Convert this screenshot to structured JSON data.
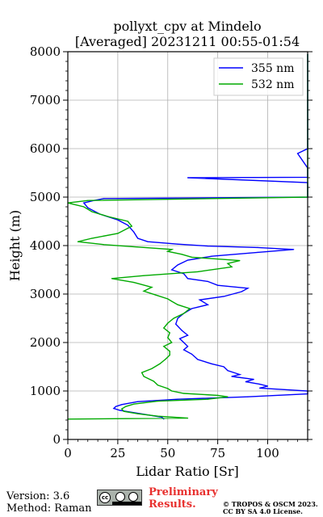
{
  "chart_data": {
    "type": "line",
    "title": "pollyxt_cpv at Mindelo",
    "subtitle": "[Averaged] 20231211 00:55-01:54",
    "xlabel": "Lidar Ratio [Sr]",
    "ylabel": "Height (m)",
    "xlim": [
      0,
      120
    ],
    "ylim": [
      0,
      8000
    ],
    "xticks": [
      0,
      25,
      50,
      75,
      100
    ],
    "yticks": [
      0,
      1000,
      2000,
      3000,
      4000,
      5000,
      6000,
      7000,
      8000
    ],
    "grid": true,
    "legend_position": "top-right",
    "series": [
      {
        "name": "355 nm",
        "color": "#0000ff",
        "points": [
          [
            48,
            420
          ],
          [
            47,
            460
          ],
          [
            35,
            540
          ],
          [
            26,
            600
          ],
          [
            23,
            640
          ],
          [
            24,
            680
          ],
          [
            27,
            720
          ],
          [
            35,
            780
          ],
          [
            55,
            830
          ],
          [
            90,
            880
          ],
          [
            120,
            940
          ],
          [
            120,
            1000
          ],
          [
            96,
            1060
          ],
          [
            100,
            1100
          ],
          [
            96,
            1140
          ],
          [
            89,
            1190
          ],
          [
            93,
            1240
          ],
          [
            82,
            1300
          ],
          [
            86,
            1340
          ],
          [
            80,
            1420
          ],
          [
            78,
            1500
          ],
          [
            72,
            1560
          ],
          [
            65,
            1650
          ],
          [
            62,
            1760
          ],
          [
            58,
            1850
          ],
          [
            60,
            1920
          ],
          [
            58,
            2000
          ],
          [
            56,
            2080
          ],
          [
            60,
            2150
          ],
          [
            57,
            2250
          ],
          [
            54,
            2380
          ],
          [
            55,
            2500
          ],
          [
            58,
            2600
          ],
          [
            62,
            2700
          ],
          [
            70,
            2780
          ],
          [
            66,
            2880
          ],
          [
            78,
            2950
          ],
          [
            87,
            3050
          ],
          [
            90,
            3120
          ],
          [
            75,
            3180
          ],
          [
            70,
            3260
          ],
          [
            60,
            3320
          ],
          [
            58,
            3420
          ],
          [
            52,
            3500
          ],
          [
            55,
            3600
          ],
          [
            60,
            3700
          ],
          [
            72,
            3780
          ],
          [
            95,
            3860
          ],
          [
            113,
            3920
          ],
          [
            95,
            3960
          ],
          [
            70,
            3990
          ],
          [
            55,
            4030
          ],
          [
            40,
            4080
          ],
          [
            35,
            4150
          ],
          [
            33,
            4280
          ],
          [
            30,
            4420
          ],
          [
            25,
            4530
          ],
          [
            16,
            4650
          ],
          [
            10,
            4780
          ],
          [
            8,
            4880
          ],
          [
            13,
            4930
          ],
          [
            18,
            4970
          ],
          [
            120,
            5000
          ],
          [
            120,
            5100
          ],
          [
            120,
            5300
          ],
          [
            60,
            5400
          ],
          [
            120,
            5410
          ],
          [
            120,
            5500
          ],
          [
            120,
            5550
          ],
          [
            120,
            5600
          ],
          [
            115,
            5900
          ],
          [
            120,
            6000
          ],
          [
            120,
            6100
          ],
          [
            120,
            6200
          ],
          [
            120,
            6300
          ],
          [
            120,
            6380
          ],
          [
            120,
            6850
          ],
          [
            120,
            7000
          ],
          [
            120,
            7050
          ],
          [
            120,
            7100
          ],
          [
            120,
            7350
          ],
          [
            120,
            7500
          ],
          [
            120,
            7700
          ],
          [
            120,
            7950
          ]
        ]
      },
      {
        "name": "532 nm",
        "color": "#00aa00",
        "points": [
          [
            0,
            420
          ],
          [
            60,
            440
          ],
          [
            45,
            480
          ],
          [
            35,
            530
          ],
          [
            28,
            580
          ],
          [
            27,
            630
          ],
          [
            29,
            680
          ],
          [
            33,
            730
          ],
          [
            45,
            790
          ],
          [
            70,
            830
          ],
          [
            80,
            880
          ],
          [
            75,
            910
          ],
          [
            58,
            950
          ],
          [
            52,
            1000
          ],
          [
            50,
            1050
          ],
          [
            45,
            1120
          ],
          [
            43,
            1200
          ],
          [
            38,
            1300
          ],
          [
            37,
            1380
          ],
          [
            42,
            1460
          ],
          [
            46,
            1560
          ],
          [
            49,
            1660
          ],
          [
            51,
            1740
          ],
          [
            51,
            1820
          ],
          [
            48,
            1920
          ],
          [
            52,
            2000
          ],
          [
            50,
            2100
          ],
          [
            51,
            2200
          ],
          [
            48,
            2300
          ],
          [
            50,
            2400
          ],
          [
            53,
            2500
          ],
          [
            58,
            2600
          ],
          [
            61,
            2700
          ],
          [
            55,
            2780
          ],
          [
            52,
            2850
          ],
          [
            50,
            2900
          ],
          [
            44,
            2980
          ],
          [
            38,
            3060
          ],
          [
            42,
            3140
          ],
          [
            33,
            3240
          ],
          [
            22,
            3320
          ],
          [
            38,
            3380
          ],
          [
            65,
            3460
          ],
          [
            82,
            3560
          ],
          [
            80,
            3630
          ],
          [
            86,
            3690
          ],
          [
            62,
            3760
          ],
          [
            57,
            3820
          ],
          [
            50,
            3880
          ],
          [
            52,
            3920
          ],
          [
            35,
            3970
          ],
          [
            18,
            4020
          ],
          [
            5,
            4080
          ],
          [
            12,
            4150
          ],
          [
            25,
            4250
          ],
          [
            32,
            4400
          ],
          [
            30,
            4500
          ],
          [
            20,
            4600
          ],
          [
            12,
            4700
          ],
          [
            8,
            4800
          ],
          [
            0,
            4880
          ],
          [
            10,
            4930
          ],
          [
            120,
            5000
          ],
          [
            120,
            5080
          ],
          [
            120,
            5120
          ],
          [
            120,
            5150
          ],
          [
            120,
            5950
          ],
          [
            120,
            6050
          ],
          [
            120,
            6150
          ],
          [
            120,
            6250
          ],
          [
            120,
            6800
          ],
          [
            120,
            6850
          ],
          [
            120,
            7000
          ],
          [
            120,
            7300
          ],
          [
            120,
            7400
          ],
          [
            120,
            7500
          ],
          [
            120,
            7550
          ],
          [
            120,
            7750
          ],
          [
            120,
            7850
          ],
          [
            120,
            7950
          ]
        ]
      }
    ]
  },
  "footer": {
    "version": "Version: 3.6",
    "method": "Method: Raman",
    "preliminary_line1": "Preliminary",
    "preliminary_line2": "Results.",
    "copyright_line1": "© TROPOS & OSCM 2023.",
    "copyright_line2": "CC BY SA 4.0 License.",
    "cc_text": "cc"
  }
}
